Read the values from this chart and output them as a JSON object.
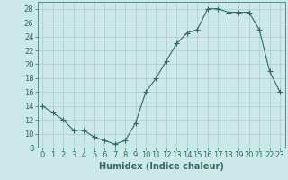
{
  "x": [
    0,
    1,
    2,
    3,
    4,
    5,
    6,
    7,
    8,
    9,
    10,
    11,
    12,
    13,
    14,
    15,
    16,
    17,
    18,
    19,
    20,
    21,
    22,
    23
  ],
  "y": [
    14,
    13,
    12,
    10.5,
    10.5,
    9.5,
    9,
    8.5,
    9,
    11.5,
    16,
    18,
    20.5,
    23,
    24.5,
    25,
    28,
    28,
    27.5,
    27.5,
    27.5,
    25,
    19,
    16
  ],
  "line_color": "#2e6b5e",
  "marker": "+",
  "marker_size": 4,
  "xlabel": "Humidex (Indice chaleur)",
  "xlim": [
    -0.5,
    23.5
  ],
  "ylim": [
    8,
    29
  ],
  "yticks": [
    8,
    10,
    12,
    14,
    16,
    18,
    20,
    22,
    24,
    26,
    28
  ],
  "xticks": [
    0,
    1,
    2,
    3,
    4,
    5,
    6,
    7,
    8,
    9,
    10,
    11,
    12,
    13,
    14,
    15,
    16,
    17,
    18,
    19,
    20,
    21,
    22,
    23
  ],
  "bg_color": "#cce8e8",
  "grid_color": "#aacccc",
  "tick_color": "#2e6b5e",
  "label_color": "#2e6b5e",
  "xlabel_fontsize": 7,
  "tick_fontsize": 6
}
